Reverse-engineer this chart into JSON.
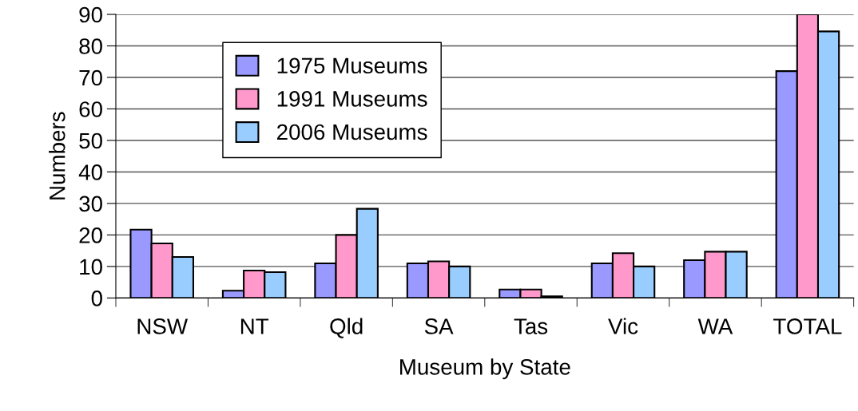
{
  "chart_data": {
    "type": "bar",
    "xlabel": "Museum by State",
    "ylabel": "Numbers",
    "categories": [
      "NSW",
      "NT",
      "Qld",
      "SA",
      "Tas",
      "Vic",
      "WA",
      "TOTAL"
    ],
    "series": [
      {
        "name": "1975 Museums",
        "color": "#9999ff",
        "values": [
          21.7,
          2.3,
          11,
          11,
          2.7,
          11,
          12,
          72
        ]
      },
      {
        "name": "1991 Museums",
        "color": "#ff99cc",
        "values": [
          17.3,
          8.7,
          20,
          11.6,
          2.7,
          14.2,
          14.7,
          90
        ]
      },
      {
        "name": "2006 Museums",
        "color": "#99ccff",
        "values": [
          13,
          8.2,
          28.3,
          10,
          0.5,
          10,
          14.7,
          84.6
        ]
      }
    ],
    "ylim": [
      0,
      90
    ],
    "yticks": [
      0,
      10,
      20,
      30,
      40,
      50,
      60,
      70,
      80,
      90
    ],
    "grid": "y",
    "legend": "top left"
  }
}
